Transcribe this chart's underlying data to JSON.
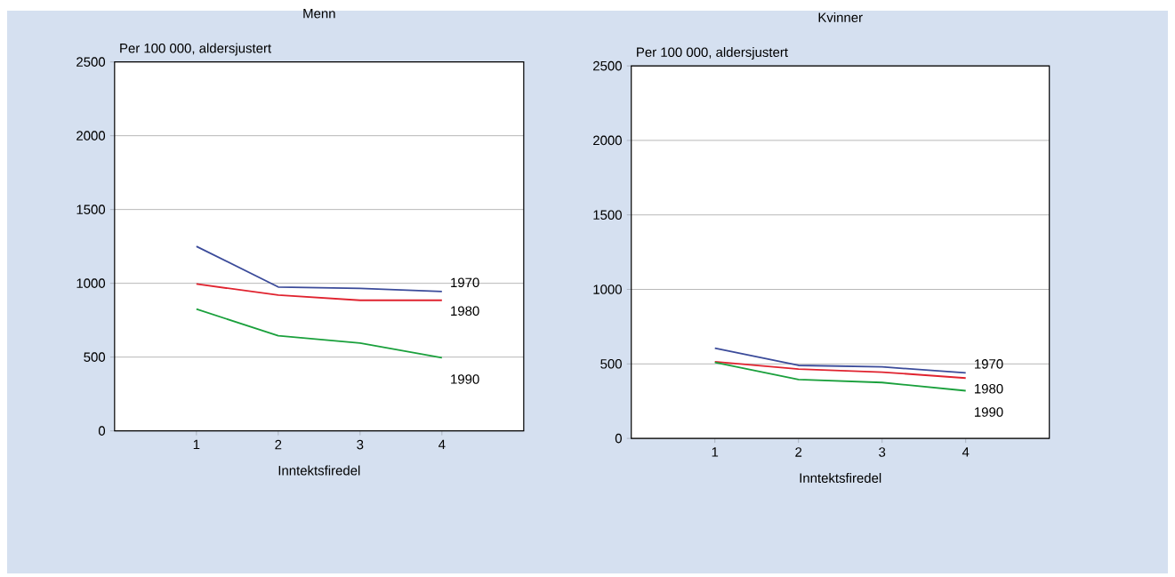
{
  "chart_data": [
    {
      "type": "line",
      "title": "Menn",
      "ylabel": "Per 100 000, aldersjustert",
      "xlabel": "Inntektsfiredel",
      "x": [
        1,
        2,
        3,
        4
      ],
      "xlim": [
        0,
        5
      ],
      "xticks": [
        1,
        2,
        3,
        4
      ],
      "ylim": [
        0,
        2500
      ],
      "yticks": [
        0,
        500,
        1000,
        1500,
        2000,
        2500
      ],
      "grid": "y",
      "legend": false,
      "series": [
        {
          "name": "1970",
          "color": "#3b4b9a",
          "values": [
            1250,
            975,
            965,
            945
          ]
        },
        {
          "name": "1980",
          "color": "#e0232f",
          "values": [
            995,
            920,
            885,
            885
          ]
        },
        {
          "name": "1990",
          "color": "#1aa03c",
          "values": [
            825,
            645,
            595,
            495
          ]
        }
      ]
    },
    {
      "type": "line",
      "title": "Kvinner",
      "ylabel": "Per 100 000, aldersjustert",
      "xlabel": "Inntektsfiredel",
      "x": [
        1,
        2,
        3,
        4
      ],
      "xlim": [
        0,
        5
      ],
      "xticks": [
        1,
        2,
        3,
        4
      ],
      "ylim": [
        0,
        2500
      ],
      "yticks": [
        0,
        500,
        1000,
        1500,
        2000,
        2500
      ],
      "grid": "y",
      "legend": false,
      "series": [
        {
          "name": "1970",
          "color": "#3b4b9a",
          "values": [
            605,
            490,
            480,
            440
          ]
        },
        {
          "name": "1980",
          "color": "#e0232f",
          "values": [
            515,
            465,
            445,
            405
          ]
        },
        {
          "name": "1990",
          "color": "#1aa03c",
          "values": [
            510,
            395,
            375,
            320
          ]
        }
      ]
    }
  ]
}
